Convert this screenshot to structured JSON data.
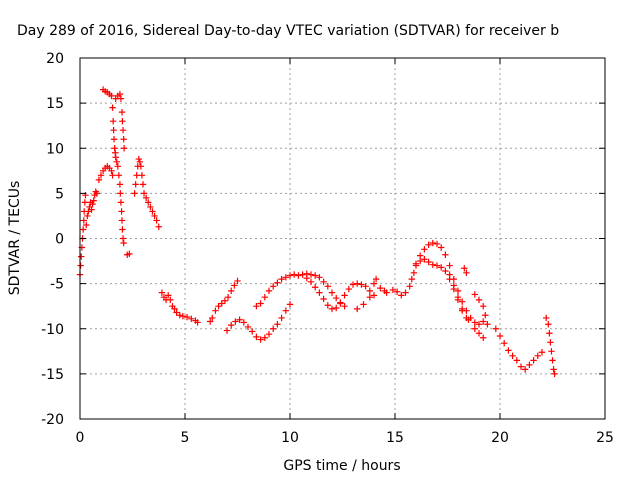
{
  "chart_data": {
    "type": "scatter",
    "title": "Day 289 of 2016, Sidereal Day-to-day VTEC variation (SDTVAR) for receiver b",
    "xlabel": "GPS time / hours",
    "ylabel": "SDTVAR / TECUs",
    "xlim": [
      0,
      25
    ],
    "ylim": [
      -20,
      20
    ],
    "xticks": [
      0,
      5,
      10,
      15,
      20,
      25
    ],
    "yticks": [
      -20,
      -15,
      -10,
      -5,
      0,
      5,
      10,
      15,
      20
    ],
    "xtick_labels": [
      "0",
      "5",
      "10",
      "15",
      "20",
      "25"
    ],
    "ytick_labels": [
      "-20",
      "-15",
      "-10",
      "-5",
      "0",
      "5",
      "10",
      "15",
      "20"
    ],
    "grid": true,
    "legend": "none",
    "marker": "plus",
    "color": "#ff0000",
    "series": [
      {
        "points": [
          [
            0.0,
            -4.0
          ],
          [
            0.03,
            -3.0
          ],
          [
            0.06,
            -2.0
          ],
          [
            0.09,
            -1.0
          ],
          [
            0.12,
            0.0
          ],
          [
            0.15,
            1.0
          ],
          [
            0.18,
            2.0
          ],
          [
            0.2,
            3.0
          ],
          [
            0.23,
            4.0
          ],
          [
            0.26,
            4.8
          ],
          [
            0.3,
            1.5
          ],
          [
            0.35,
            2.5
          ],
          [
            0.4,
            3.0
          ],
          [
            0.45,
            3.5
          ],
          [
            0.5,
            4.0
          ],
          [
            0.55,
            3.2
          ],
          [
            0.6,
            3.8
          ],
          [
            0.65,
            4.2
          ],
          [
            0.7,
            4.8
          ],
          [
            0.75,
            5.2
          ],
          [
            0.8,
            5.0
          ],
          [
            0.9,
            6.5
          ],
          [
            1.0,
            7.0
          ],
          [
            1.1,
            7.5
          ],
          [
            1.2,
            7.8
          ],
          [
            1.3,
            8.0
          ],
          [
            1.4,
            7.8
          ],
          [
            1.5,
            7.5
          ],
          [
            1.55,
            7.0
          ],
          [
            1.1,
            16.5
          ],
          [
            1.2,
            16.3
          ],
          [
            1.3,
            16.2
          ],
          [
            1.4,
            16.0
          ],
          [
            1.5,
            15.8
          ],
          [
            1.55,
            14.5
          ],
          [
            1.58,
            13.0
          ],
          [
            1.6,
            12.0
          ],
          [
            1.62,
            11.0
          ],
          [
            1.65,
            10.0
          ],
          [
            1.68,
            9.5
          ],
          [
            1.7,
            9.0
          ],
          [
            1.75,
            8.5
          ],
          [
            1.8,
            8.0
          ],
          [
            1.85,
            7.0
          ],
          [
            1.9,
            6.0
          ],
          [
            1.92,
            5.0
          ],
          [
            1.95,
            4.0
          ],
          [
            1.98,
            3.0
          ],
          [
            2.0,
            2.0
          ],
          [
            2.02,
            1.0
          ],
          [
            2.05,
            0.0
          ],
          [
            2.08,
            -0.5
          ],
          [
            1.7,
            15.5
          ],
          [
            1.8,
            15.8
          ],
          [
            1.9,
            16.0
          ],
          [
            1.95,
            15.5
          ],
          [
            2.0,
            14.0
          ],
          [
            2.02,
            13.0
          ],
          [
            2.05,
            12.0
          ],
          [
            2.08,
            11.0
          ],
          [
            2.1,
            10.0
          ],
          [
            2.25,
            -1.8
          ],
          [
            2.35,
            -1.7
          ],
          [
            2.6,
            5.0
          ],
          [
            2.65,
            6.0
          ],
          [
            2.7,
            7.0
          ],
          [
            2.75,
            8.0
          ],
          [
            2.8,
            8.8
          ],
          [
            2.85,
            8.5
          ],
          [
            2.9,
            8.0
          ],
          [
            2.95,
            7.0
          ],
          [
            3.0,
            6.0
          ],
          [
            3.05,
            5.0
          ],
          [
            3.15,
            4.5
          ],
          [
            3.25,
            4.0
          ],
          [
            3.35,
            3.5
          ],
          [
            3.45,
            3.0
          ],
          [
            3.55,
            2.5
          ],
          [
            3.65,
            2.0
          ],
          [
            3.75,
            1.3
          ],
          [
            3.9,
            -6.0
          ],
          [
            4.0,
            -6.5
          ],
          [
            4.1,
            -6.8
          ],
          [
            4.2,
            -6.3
          ],
          [
            4.3,
            -6.8
          ],
          [
            4.4,
            -7.5
          ],
          [
            4.5,
            -7.8
          ],
          [
            4.6,
            -8.2
          ],
          [
            4.75,
            -8.5
          ],
          [
            4.9,
            -8.6
          ],
          [
            5.1,
            -8.7
          ],
          [
            5.3,
            -8.9
          ],
          [
            5.5,
            -9.1
          ],
          [
            5.6,
            -9.3
          ],
          [
            6.2,
            -9.2
          ],
          [
            6.3,
            -8.8
          ],
          [
            6.45,
            -8.0
          ],
          [
            6.6,
            -7.5
          ],
          [
            6.75,
            -7.2
          ],
          [
            6.9,
            -6.9
          ],
          [
            7.05,
            -6.5
          ],
          [
            7.2,
            -5.8
          ],
          [
            7.35,
            -5.2
          ],
          [
            7.5,
            -4.7
          ],
          [
            7.0,
            -10.2
          ],
          [
            7.2,
            -9.6
          ],
          [
            7.4,
            -9.2
          ],
          [
            7.6,
            -9.0
          ],
          [
            7.8,
            -9.3
          ],
          [
            8.0,
            -9.8
          ],
          [
            8.2,
            -10.3
          ],
          [
            8.4,
            -10.9
          ],
          [
            8.6,
            -11.2
          ],
          [
            8.8,
            -11.0
          ],
          [
            9.0,
            -10.6
          ],
          [
            9.2,
            -10.0
          ],
          [
            9.4,
            -9.5
          ],
          [
            9.6,
            -8.8
          ],
          [
            9.8,
            -8.0
          ],
          [
            10.0,
            -7.3
          ],
          [
            8.4,
            -7.5
          ],
          [
            8.6,
            -7.2
          ],
          [
            8.8,
            -6.5
          ],
          [
            9.0,
            -5.8
          ],
          [
            9.2,
            -5.3
          ],
          [
            9.4,
            -4.9
          ],
          [
            9.6,
            -4.5
          ],
          [
            9.8,
            -4.3
          ],
          [
            10.0,
            -4.1
          ],
          [
            10.2,
            -4.0
          ],
          [
            10.4,
            -4.1
          ],
          [
            10.6,
            -4.0
          ],
          [
            10.8,
            -3.9
          ],
          [
            11.0,
            -4.0
          ],
          [
            11.2,
            -4.1
          ],
          [
            11.4,
            -4.3
          ],
          [
            11.6,
            -4.8
          ],
          [
            11.8,
            -5.3
          ],
          [
            12.0,
            -6.0
          ],
          [
            12.2,
            -6.6
          ],
          [
            12.4,
            -7.2
          ],
          [
            12.6,
            -7.5
          ],
          [
            10.8,
            -4.4
          ],
          [
            11.0,
            -4.8
          ],
          [
            11.2,
            -5.4
          ],
          [
            11.4,
            -6.0
          ],
          [
            11.6,
            -6.7
          ],
          [
            11.8,
            -7.4
          ],
          [
            12.0,
            -7.8
          ],
          [
            12.2,
            -7.7
          ],
          [
            12.4,
            -7.1
          ],
          [
            12.6,
            -6.3
          ],
          [
            12.8,
            -5.6
          ],
          [
            13.0,
            -5.1
          ],
          [
            13.2,
            -5.0
          ],
          [
            13.4,
            -5.1
          ],
          [
            13.6,
            -5.3
          ],
          [
            13.8,
            -5.8
          ],
          [
            14.0,
            -6.3
          ],
          [
            13.2,
            -7.8
          ],
          [
            13.5,
            -7.3
          ],
          [
            13.8,
            -6.5
          ],
          [
            14.0,
            -5.0
          ],
          [
            14.1,
            -4.5
          ],
          [
            14.3,
            -5.5
          ],
          [
            14.5,
            -5.8
          ],
          [
            14.6,
            -6.0
          ],
          [
            14.9,
            -5.7
          ],
          [
            15.1,
            -5.9
          ],
          [
            15.3,
            -6.3
          ],
          [
            15.5,
            -6.0
          ],
          [
            15.7,
            -5.3
          ],
          [
            15.8,
            -4.5
          ],
          [
            15.9,
            -3.8
          ],
          [
            16.0,
            -3.0
          ],
          [
            16.2,
            -2.5
          ],
          [
            16.4,
            -2.3
          ],
          [
            16.6,
            -2.6
          ],
          [
            16.8,
            -2.9
          ],
          [
            17.0,
            -3.0
          ],
          [
            17.2,
            -3.2
          ],
          [
            17.4,
            -3.6
          ],
          [
            17.6,
            -4.5
          ],
          [
            17.8,
            -5.6
          ],
          [
            18.0,
            -6.8
          ],
          [
            18.2,
            -8.0
          ],
          [
            18.4,
            -8.8
          ],
          [
            16.0,
            -2.8
          ],
          [
            16.2,
            -1.9
          ],
          [
            16.4,
            -1.2
          ],
          [
            16.6,
            -0.7
          ],
          [
            16.8,
            -0.5
          ],
          [
            17.0,
            -0.6
          ],
          [
            17.2,
            -1.0
          ],
          [
            17.4,
            -1.8
          ],
          [
            17.6,
            -3.0
          ],
          [
            17.8,
            -4.5
          ],
          [
            18.0,
            -5.8
          ],
          [
            18.2,
            -7.0
          ],
          [
            18.4,
            -8.0
          ],
          [
            18.6,
            -8.8
          ],
          [
            18.8,
            -9.3
          ],
          [
            19.0,
            -9.5
          ],
          [
            19.2,
            -9.2
          ],
          [
            17.6,
            -4.0
          ],
          [
            17.8,
            -5.2
          ],
          [
            18.0,
            -6.5
          ],
          [
            18.2,
            -7.8
          ],
          [
            18.5,
            -9.0
          ],
          [
            18.8,
            -10.0
          ],
          [
            19.0,
            -10.5
          ],
          [
            19.2,
            -11.0
          ],
          [
            18.3,
            -3.3
          ],
          [
            18.4,
            -3.8
          ],
          [
            18.8,
            -6.2
          ],
          [
            19.0,
            -6.8
          ],
          [
            19.2,
            -7.5
          ],
          [
            19.3,
            -8.5
          ],
          [
            19.4,
            -9.5
          ],
          [
            19.8,
            -10.0
          ],
          [
            20.0,
            -10.8
          ],
          [
            20.2,
            -11.6
          ],
          [
            20.4,
            -12.4
          ],
          [
            20.6,
            -13.0
          ],
          [
            20.8,
            -13.5
          ],
          [
            21.0,
            -14.2
          ],
          [
            21.2,
            -14.5
          ],
          [
            21.4,
            -14.0
          ],
          [
            21.6,
            -13.5
          ],
          [
            21.8,
            -13.0
          ],
          [
            22.0,
            -12.6
          ],
          [
            22.2,
            -8.8
          ],
          [
            22.3,
            -9.5
          ],
          [
            22.35,
            -10.5
          ],
          [
            22.4,
            -11.5
          ],
          [
            22.45,
            -12.5
          ],
          [
            22.5,
            -13.5
          ],
          [
            22.55,
            -14.5
          ],
          [
            22.6,
            -15.0
          ]
        ]
      }
    ]
  }
}
